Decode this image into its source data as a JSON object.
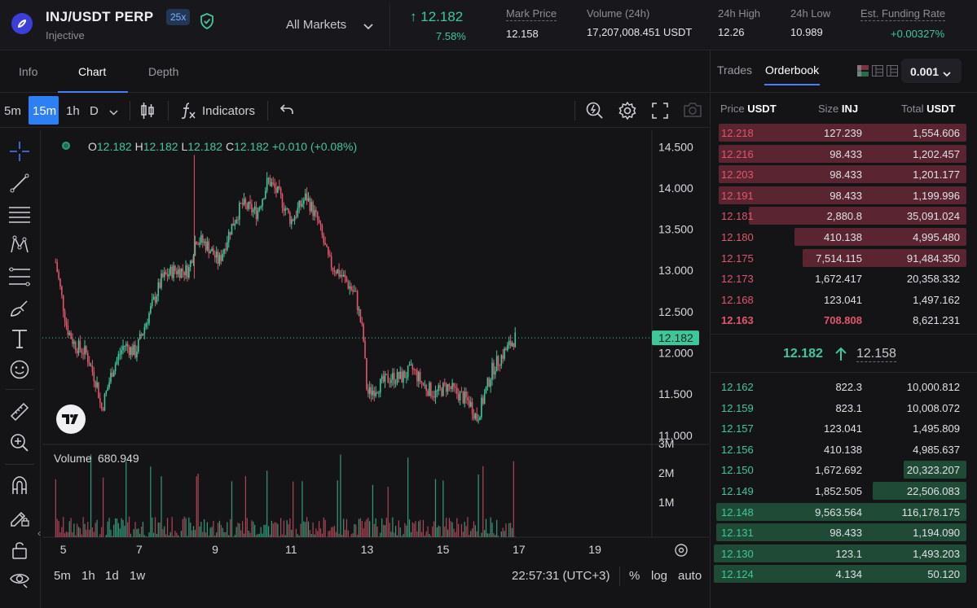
{
  "header": {
    "pair": "INJ/USDT PERP",
    "leverage": "25x",
    "subtitle": "Injective",
    "markets_label": "All Markets",
    "last_price": "12.182",
    "change_pct": "7.58%",
    "stats": [
      {
        "label": "Mark Price",
        "value": "12.158"
      },
      {
        "label": "Volume (24h)",
        "value": "17,207,008.451 USDT"
      },
      {
        "label": "24h High",
        "value": "12.26"
      },
      {
        "label": "24h Low",
        "value": "10.989"
      },
      {
        "label": "Est. Funding Rate",
        "value": "+0.00327%"
      }
    ],
    "accent_color": "#3fc79a"
  },
  "tabs": [
    "Info",
    "Chart",
    "Depth"
  ],
  "chart_toolbar": {
    "timeframes": [
      "5m",
      "15m",
      "1h",
      "D"
    ],
    "active_timeframe": "15m",
    "indicators_label": "Indicators"
  },
  "legend": {
    "o_label": "O",
    "o": "12.182",
    "h_label": "H",
    "h": "12.182",
    "l_label": "L",
    "l": "12.182",
    "c_label": "C",
    "c": "12.182",
    "change": "+0.010 (+0.08%)"
  },
  "volume": {
    "label": "Volume",
    "value": "680.949"
  },
  "price_tag": "12.182",
  "bottom_bar": {
    "ranges": [
      "5m",
      "1h",
      "1d",
      "1w"
    ],
    "clock": "22:57:31 (UTC+3)",
    "percent": "%",
    "log": "log",
    "auto": "auto"
  },
  "chart_data": {
    "type": "candlestick",
    "y_axis_ticks": [
      "14.500",
      "14.000",
      "13.500",
      "13.000",
      "12.500",
      "12.000",
      "11.500",
      "11.000"
    ],
    "volume_axis_ticks": [
      "3M",
      "2M",
      "1M"
    ],
    "x_axis_ticks": [
      "5",
      "7",
      "9",
      "11",
      "13",
      "15",
      "17",
      "19"
    ],
    "ylim": [
      10.9,
      14.7
    ],
    "close_path": [
      {
        "x": 4.8,
        "y": 13.1
      },
      {
        "x": 5.1,
        "y": 12.3
      },
      {
        "x": 5.3,
        "y": 12.1
      },
      {
        "x": 5.6,
        "y": 12.0
      },
      {
        "x": 5.9,
        "y": 11.6
      },
      {
        "x": 6.0,
        "y": 11.3
      },
      {
        "x": 6.3,
        "y": 11.8
      },
      {
        "x": 6.6,
        "y": 12.1
      },
      {
        "x": 6.9,
        "y": 12.0
      },
      {
        "x": 7.2,
        "y": 12.4
      },
      {
        "x": 7.6,
        "y": 12.9
      },
      {
        "x": 7.9,
        "y": 13.0
      },
      {
        "x": 8.3,
        "y": 13.0
      },
      {
        "x": 8.5,
        "y": 13.4
      },
      {
        "x": 8.8,
        "y": 13.3
      },
      {
        "x": 9.1,
        "y": 13.1
      },
      {
        "x": 9.4,
        "y": 13.5
      },
      {
        "x": 9.7,
        "y": 13.8
      },
      {
        "x": 10.1,
        "y": 13.7
      },
      {
        "x": 10.4,
        "y": 14.1
      },
      {
        "x": 10.7,
        "y": 13.9
      },
      {
        "x": 11.0,
        "y": 13.6
      },
      {
        "x": 11.4,
        "y": 13.9
      },
      {
        "x": 11.7,
        "y": 13.6
      },
      {
        "x": 12.0,
        "y": 13.1
      },
      {
        "x": 12.4,
        "y": 12.9
      },
      {
        "x": 12.7,
        "y": 12.7
      },
      {
        "x": 12.9,
        "y": 12.2
      },
      {
        "x": 13.0,
        "y": 11.5
      },
      {
        "x": 13.3,
        "y": 11.6
      },
      {
        "x": 13.6,
        "y": 11.7
      },
      {
        "x": 13.9,
        "y": 11.7
      },
      {
        "x": 14.2,
        "y": 11.8
      },
      {
        "x": 14.5,
        "y": 11.6
      },
      {
        "x": 14.8,
        "y": 11.5
      },
      {
        "x": 15.1,
        "y": 11.6
      },
      {
        "x": 15.4,
        "y": 11.5
      },
      {
        "x": 15.7,
        "y": 11.4
      },
      {
        "x": 15.9,
        "y": 11.2
      },
      {
        "x": 16.1,
        "y": 11.5
      },
      {
        "x": 16.3,
        "y": 11.8
      },
      {
        "x": 16.6,
        "y": 12.0
      },
      {
        "x": 16.9,
        "y": 12.182
      }
    ],
    "last_price": 12.182,
    "up_color": "#3fc79a",
    "down_color": "#e0566b",
    "grid": false
  },
  "right_panel": {
    "tabs": [
      "Trades",
      "Orderbook"
    ],
    "active_tab": "Orderbook",
    "tick_size": "0.001",
    "headers": {
      "price": "Price",
      "price_unit": "USDT",
      "size": "Size",
      "size_unit": "INJ",
      "total": "Total",
      "total_unit": "USDT"
    },
    "asks": [
      {
        "price": "12.218",
        "size": "127.239",
        "total": "1,554.606",
        "depth": 0.98
      },
      {
        "price": "12.216",
        "size": "98.433",
        "total": "1,202.457",
        "depth": 0.98
      },
      {
        "price": "12.203",
        "size": "98.433",
        "total": "1,201.177",
        "depth": 0.98
      },
      {
        "price": "12.191",
        "size": "98.433",
        "total": "1,199.996",
        "depth": 0.98
      },
      {
        "price": "12.181",
        "size": "2,880.8",
        "total": "35,091.024",
        "depth": 0.86
      },
      {
        "price": "12.180",
        "size": "410.138",
        "total": "4,995.480",
        "depth": 0.68
      },
      {
        "price": "12.175",
        "size": "7,514.115",
        "total": "91,484.350",
        "depth": 0.65
      },
      {
        "price": "12.173",
        "size": "1,672.417",
        "total": "20,358.332",
        "depth": 0.0
      },
      {
        "price": "12.168",
        "size": "123.041",
        "total": "1,497.162",
        "depth": 0.0
      },
      {
        "price": "12.163",
        "size": "708.808",
        "total": "8,621.231",
        "depth": 0.0,
        "highlight": true
      }
    ],
    "mid": {
      "price": "12.182",
      "mark": "12.158"
    },
    "bids": [
      {
        "price": "12.162",
        "size": "822.3",
        "total": "10,000.812",
        "depth": 0.0
      },
      {
        "price": "12.159",
        "size": "823.1",
        "total": "10,008.072",
        "depth": 0.0
      },
      {
        "price": "12.157",
        "size": "123.041",
        "total": "1,495.809",
        "depth": 0.0
      },
      {
        "price": "12.156",
        "size": "410.138",
        "total": "4,985.637",
        "depth": 0.0
      },
      {
        "price": "12.150",
        "size": "1,672.692",
        "total": "20,323.207",
        "depth": 0.25
      },
      {
        "price": "12.149",
        "size": "1,852.505",
        "total": "22,506.083",
        "depth": 0.37
      },
      {
        "price": "12.148",
        "size": "9,563.564",
        "total": "116,178.175",
        "depth": 0.99
      },
      {
        "price": "12.131",
        "size": "98.433",
        "total": "1,194.090",
        "depth": 0.99
      },
      {
        "price": "12.130",
        "size": "123.1",
        "total": "1,493.203",
        "depth": 1.0
      },
      {
        "price": "12.124",
        "size": "4.134",
        "total": "50.120",
        "depth": 1.0
      }
    ]
  }
}
